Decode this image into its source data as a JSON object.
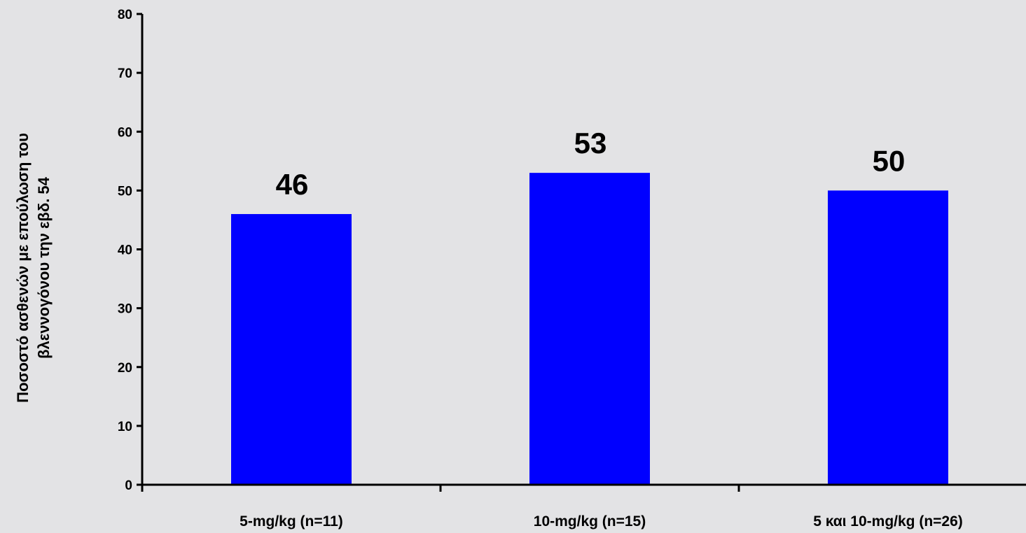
{
  "chart_data": {
    "type": "bar",
    "title": "",
    "xlabel": "",
    "ylabel_lines": [
      "Ποσοστό ασθενών με επούλωση του",
      "βλεννογόνου την εβδ. 54"
    ],
    "categories": [
      "5-mg/kg  (n=11)",
      "10-mg/kg  (n=15)",
      "5 και 10-mg/kg  (n=26)"
    ],
    "values": [
      46,
      53,
      50
    ],
    "data_labels": [
      "46",
      "53",
      "50"
    ],
    "ylim": [
      0,
      80
    ],
    "yticks": [
      0,
      10,
      20,
      30,
      40,
      50,
      60,
      70,
      80
    ],
    "bar_color": "#0000ff",
    "background_color": "#e3e3e5",
    "grid": false,
    "legend": "none"
  }
}
